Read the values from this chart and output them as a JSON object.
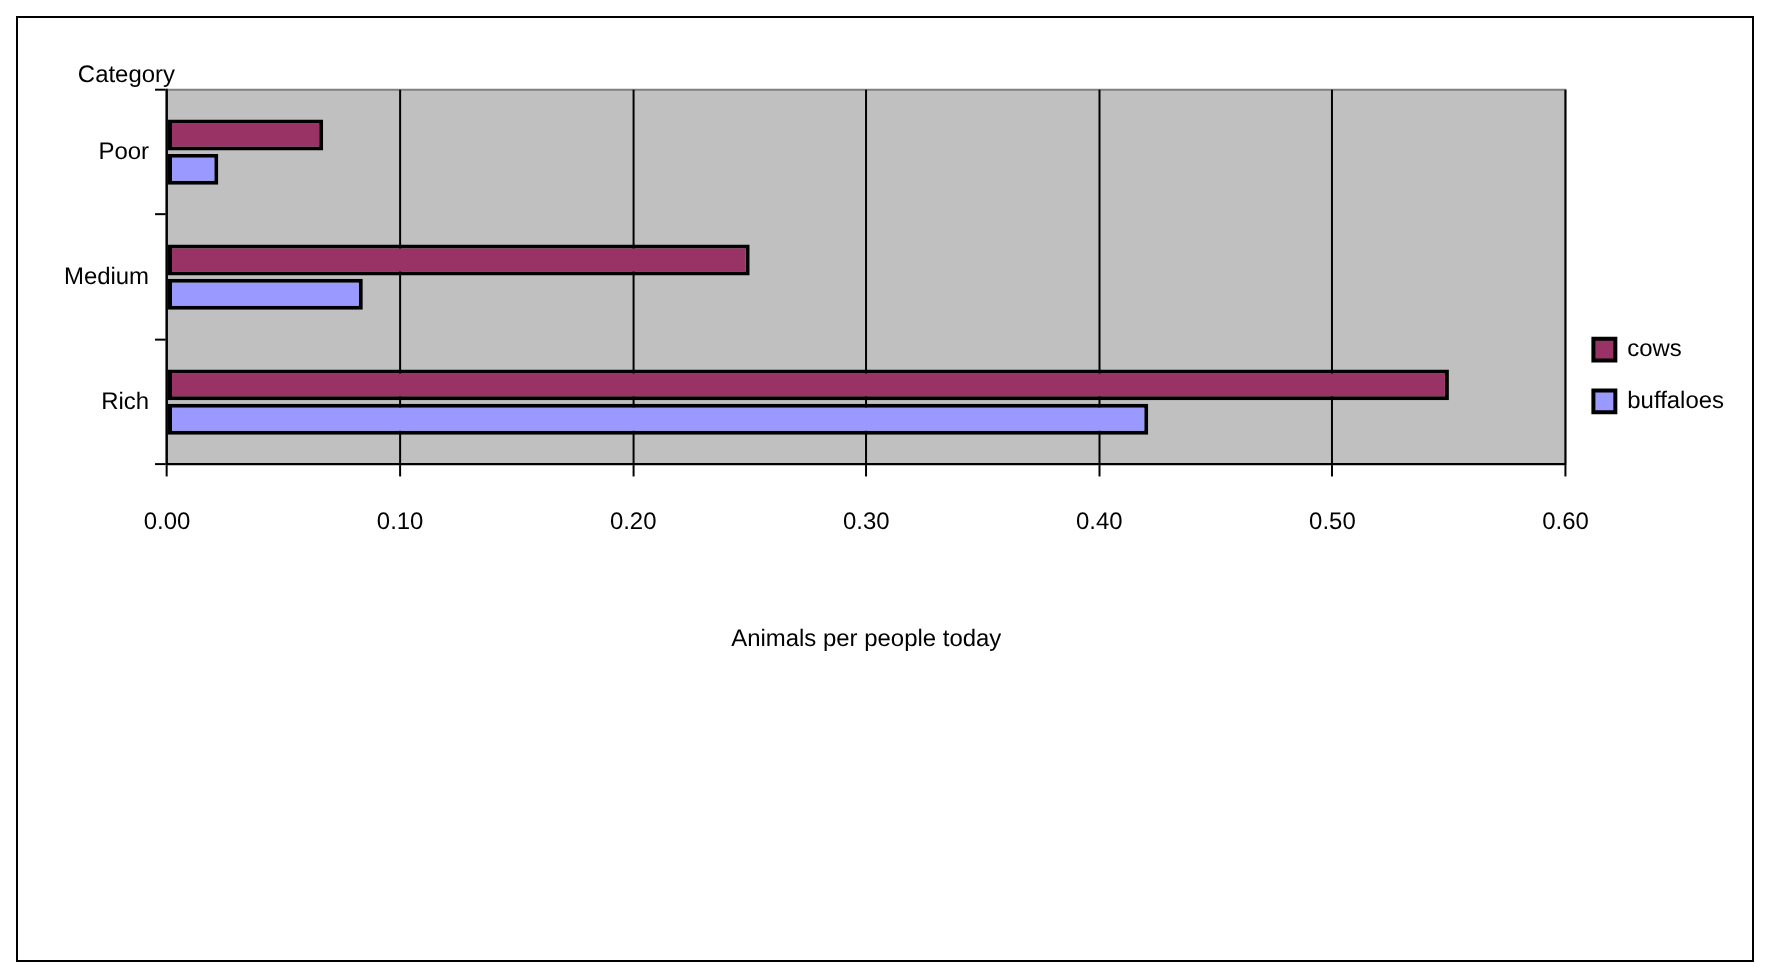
{
  "chart_data": {
    "type": "bar",
    "orientation": "horizontal",
    "ylabel": "Category",
    "xlabel": "Animals per people today",
    "categories": [
      "Poor",
      "Medium",
      "Rich"
    ],
    "series": [
      {
        "name": "cows",
        "color": "#993366",
        "values": [
          0.067,
          0.25,
          0.55
        ]
      },
      {
        "name": "buffaloes",
        "color": "#9999ff",
        "values": [
          0.022,
          0.084,
          0.421
        ]
      }
    ],
    "xlim": [
      0,
      0.6
    ],
    "xticks": [
      {
        "value": 0,
        "label": "0.00"
      },
      {
        "value": 0.1,
        "label": "0.10"
      },
      {
        "value": 0.2,
        "label": "0.20"
      },
      {
        "value": 0.3,
        "label": "0.30"
      },
      {
        "value": 0.4,
        "label": "0.40"
      },
      {
        "value": 0.5,
        "label": "0.50"
      },
      {
        "value": 0.6,
        "label": "0.60"
      }
    ],
    "grid": "x",
    "legend": "right"
  }
}
